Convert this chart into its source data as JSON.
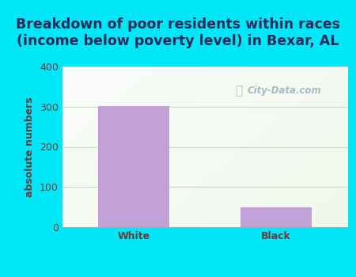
{
  "categories": [
    "White",
    "Black"
  ],
  "values": [
    301,
    49
  ],
  "bar_color": "#c2a0d8",
  "title": "Breakdown of poor residents within races\n(income below poverty level) in Bexar, AL",
  "ylabel": "absolute numbers",
  "ylim": [
    0,
    400
  ],
  "yticks": [
    0,
    100,
    200,
    300,
    400
  ],
  "background_outer": "#00e8f8",
  "background_inner_tl": "#f0f8ee",
  "background_inner_br": "#ddf0dd",
  "title_color": "#2a2a5a",
  "axis_label_color": "#6b3a3a",
  "tick_label_color": "#6b3a3a",
  "watermark": "City-Data.com",
  "title_fontsize": 12.5,
  "ylabel_fontsize": 9,
  "tick_fontsize": 9,
  "grid_color": "#c8dcc8",
  "bar_width": 0.5
}
